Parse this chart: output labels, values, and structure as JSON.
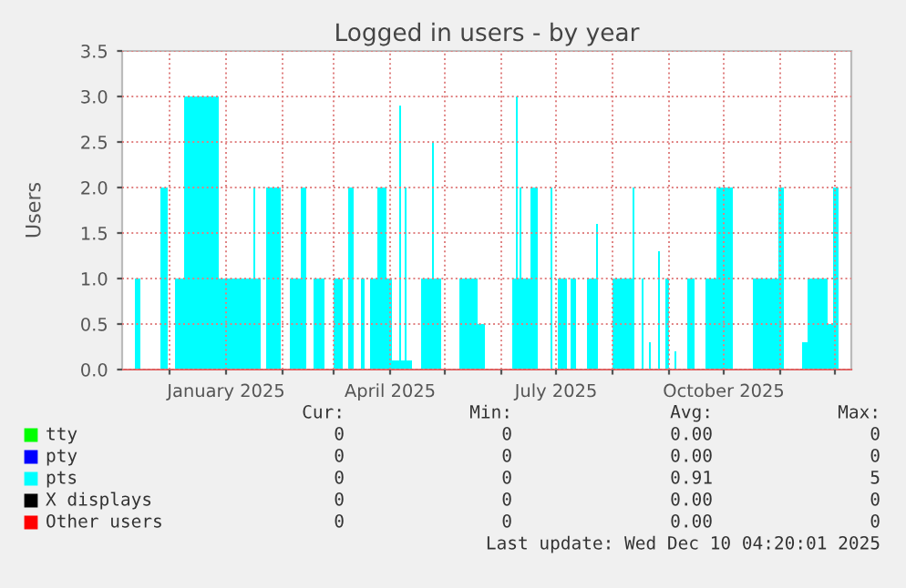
{
  "chart_data": {
    "type": "area",
    "title": "Logged in users - by year",
    "ylabel": "Users",
    "xlim": [
      "2024-11-05",
      "2025-12-10"
    ],
    "xticks": [
      {
        "value": "2024-12-01",
        "label": null
      },
      {
        "value": "2025-01-01",
        "label": "January 2025"
      },
      {
        "value": "2025-02-01",
        "label": null
      },
      {
        "value": "2025-03-01",
        "label": null
      },
      {
        "value": "2025-04-01",
        "label": "April 2025"
      },
      {
        "value": "2025-05-01",
        "label": null
      },
      {
        "value": "2025-06-01",
        "label": null
      },
      {
        "value": "2025-07-01",
        "label": "July 2025"
      },
      {
        "value": "2025-08-01",
        "label": null
      },
      {
        "value": "2025-09-01",
        "label": null
      },
      {
        "value": "2025-10-01",
        "label": "October 2025"
      },
      {
        "value": "2025-11-01",
        "label": null
      },
      {
        "value": "2025-12-01",
        "label": null
      }
    ],
    "ylim": [
      0,
      3.5
    ],
    "yticks": [
      {
        "value": 0,
        "label": "0.0"
      },
      {
        "value": 0.5,
        "label": "0.5"
      },
      {
        "value": 1,
        "label": "1.0"
      },
      {
        "value": 1.5,
        "label": "1.5"
      },
      {
        "value": 2,
        "label": "2.0"
      },
      {
        "value": 2.5,
        "label": "2.5"
      },
      {
        "value": 3,
        "label": "3.0"
      },
      {
        "value": 3.5,
        "label": "3.5"
      }
    ],
    "grid": true,
    "legend": "bottom",
    "line_style": "solid",
    "series": [
      {
        "name": "tty",
        "color": "#00ff00"
      },
      {
        "name": "pty",
        "color": "#0000ff"
      },
      {
        "name": "pts",
        "color": "#00ffff",
        "x": [
          "2024-11-05",
          "2024-11-12",
          "2024-11-15",
          "2024-11-26",
          "2024-11-30",
          "2024-12-04",
          "2024-12-09",
          "2024-12-28",
          "2025-01-16",
          "2025-01-17",
          "2025-01-20",
          "2025-01-23",
          "2025-01-31",
          "2025-02-05",
          "2025-02-11",
          "2025-02-14",
          "2025-02-18",
          "2025-02-24",
          "2025-03-01",
          "2025-03-06",
          "2025-03-09",
          "2025-03-12",
          "2025-03-16",
          "2025-03-18",
          "2025-03-21",
          "2025-03-25",
          "2025-03-30",
          "2025-04-02",
          "2025-04-06",
          "2025-04-07",
          "2025-04-09",
          "2025-04-10",
          "2025-04-13",
          "2025-04-18",
          "2025-04-24",
          "2025-04-25",
          "2025-04-29",
          "2025-05-09",
          "2025-05-19",
          "2025-05-23",
          "2025-06-07",
          "2025-06-09",
          "2025-06-10",
          "2025-06-11",
          "2025-06-12",
          "2025-06-17",
          "2025-06-21",
          "2025-06-28",
          "2025-06-29",
          "2025-07-02",
          "2025-07-07",
          "2025-07-09",
          "2025-07-12",
          "2025-07-18",
          "2025-07-23",
          "2025-07-24",
          "2025-08-01",
          "2025-08-12",
          "2025-08-13",
          "2025-08-17",
          "2025-08-18",
          "2025-08-21",
          "2025-08-22",
          "2025-08-26",
          "2025-08-27",
          "2025-08-30",
          "2025-09-01",
          "2025-09-04",
          "2025-09-05",
          "2025-09-11",
          "2025-09-15",
          "2025-09-21",
          "2025-09-27",
          "2025-10-06",
          "2025-10-17",
          "2025-10-31",
          "2025-11-03",
          "2025-11-13",
          "2025-11-16",
          "2025-11-27",
          "2025-11-30",
          "2025-12-03",
          "2025-12-10"
        ],
        "values": [
          0,
          1,
          0,
          2,
          0,
          1,
          3,
          1,
          2,
          1,
          0,
          2,
          0,
          1,
          2,
          0,
          1,
          0,
          1,
          0,
          2,
          0,
          1,
          0,
          1,
          2,
          1,
          0.1,
          2.9,
          0.1,
          2,
          0.1,
          0,
          1,
          2.5,
          1,
          0,
          1,
          0.5,
          0,
          1,
          3,
          1,
          2,
          1,
          2,
          0,
          2,
          0,
          1,
          0,
          1,
          0,
          1,
          1.6,
          0,
          1,
          2,
          0,
          1,
          0,
          0.3,
          0,
          1.3,
          0,
          1,
          0,
          0.2,
          0,
          1,
          0,
          1,
          2,
          0,
          1,
          2,
          0,
          0.3,
          1,
          0.5,
          2,
          0,
          0
        ]
      },
      {
        "name": "X displays",
        "color": "#000000"
      },
      {
        "name": "Other users",
        "color": "#ff0000"
      }
    ],
    "annotations": [
      "Cur:",
      "Min:",
      "Avg:",
      "Max:",
      "0",
      "0",
      "0.00",
      "0",
      "0",
      "0",
      "0.00",
      "0",
      "0",
      "0",
      "0.91",
      "5",
      "0",
      "0",
      "0.00",
      "0",
      "0",
      "0",
      "0.00",
      "0",
      "Last update: Wed Dec 10 04:20:01 2025"
    ]
  }
}
